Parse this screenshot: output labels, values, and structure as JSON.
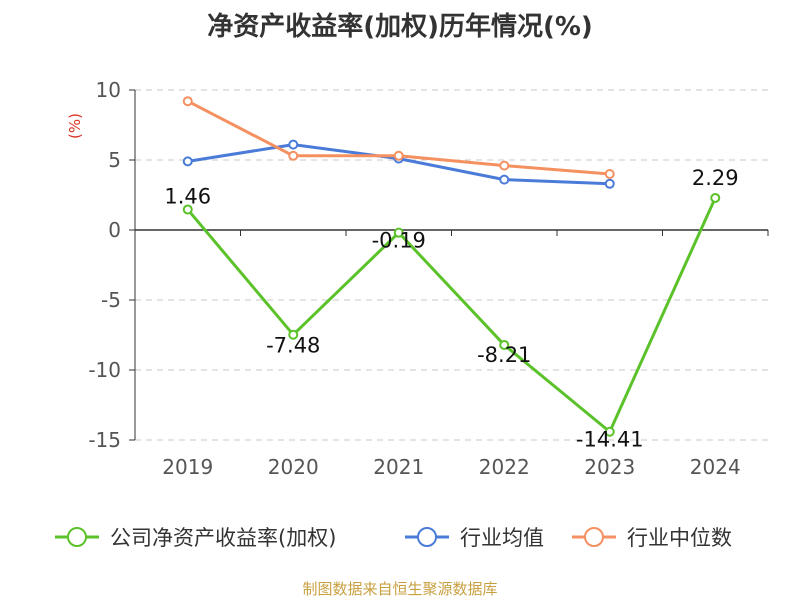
{
  "chart_data": {
    "type": "line",
    "title": "净资产收益率(加权)历年情况(%)",
    "ylabel": "(%)",
    "xlabel": "",
    "categories": [
      "2019",
      "2020",
      "2021",
      "2022",
      "2023",
      "2024"
    ],
    "y_ticks": [
      10,
      5,
      0,
      -5,
      -10,
      -15
    ],
    "ylim": [
      -15,
      10
    ],
    "grid": true,
    "legend_position": "bottom",
    "series": [
      {
        "name": "公司净资产收益率(加权)",
        "color": "#5bc22a",
        "values": [
          1.46,
          -7.48,
          -0.19,
          -8.21,
          -14.41,
          2.29
        ],
        "labels": [
          "1.46",
          "-7.48",
          "-0.19",
          "-8.21",
          "-14.41",
          "2.29"
        ],
        "show_labels": true
      },
      {
        "name": "行业均值",
        "color": "#4a7bd8",
        "values": [
          4.9,
          6.1,
          5.1,
          3.6,
          3.3,
          null
        ],
        "show_labels": false
      },
      {
        "name": "行业中位数",
        "color": "#f59060",
        "values": [
          9.2,
          5.3,
          5.3,
          4.6,
          4.0,
          null
        ],
        "show_labels": false
      }
    ]
  },
  "source": "制图数据来自恒生聚源数据库"
}
